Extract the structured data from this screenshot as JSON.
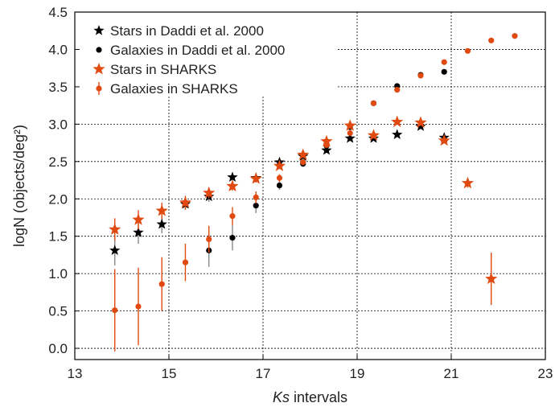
{
  "chart_data": {
    "type": "scatter",
    "title": "",
    "xlabel_italic": "Ks",
    "xlabel_rest": " intervals",
    "ylabel": "logN (objects/deg²)",
    "xlim": [
      13,
      23
    ],
    "ylim": [
      -0.15,
      4.5
    ],
    "xticks": [
      13,
      15,
      17,
      19,
      21,
      23
    ],
    "yticks": [
      0.0,
      0.5,
      1.0,
      1.5,
      2.0,
      2.5,
      3.0,
      3.5,
      4.0,
      4.5
    ],
    "grid": "dotted",
    "legend_position": "top-left",
    "colors": {
      "black": "#000000",
      "orange": "#e04a10",
      "errbar_gray": "#888888"
    },
    "series": [
      {
        "name": "Stars in Daddi et al. 2000",
        "marker": "star",
        "color": "#000000",
        "x": [
          13.85,
          14.35,
          14.85,
          15.35,
          15.85,
          16.35,
          16.85,
          17.35,
          17.85,
          18.35,
          18.85,
          19.35,
          19.85,
          20.35,
          20.85
        ],
        "y": [
          1.31,
          1.55,
          1.66,
          1.93,
          2.03,
          2.29,
          2.28,
          2.49,
          2.57,
          2.65,
          2.81,
          2.81,
          2.86,
          2.97,
          2.82
        ],
        "yerr": [
          0.2,
          0.15,
          0.12,
          0.08,
          0.07,
          0.05,
          0.06,
          0.04,
          0.03,
          0.02,
          0.02,
          0.02,
          0.02,
          0.02,
          0.03
        ]
      },
      {
        "name": "Galaxies in Daddi et al. 2000",
        "marker": "circle",
        "color": "#000000",
        "x": [
          15.85,
          16.35,
          16.85,
          17.35,
          17.85,
          18.35,
          18.85,
          19.35,
          19.85,
          20.35,
          20.85
        ],
        "y": [
          1.31,
          1.48,
          1.91,
          2.18,
          2.47,
          2.71,
          2.96,
          3.28,
          3.51,
          3.66,
          3.7
        ],
        "yerr": [
          0.22,
          0.17,
          0.1,
          0.06,
          0.04,
          0.03,
          0.02,
          0.02,
          0.01,
          0.01,
          0.01
        ]
      },
      {
        "name": "Stars in SHARKS",
        "marker": "star",
        "color": "#e04a10",
        "x": [
          13.85,
          14.35,
          14.85,
          15.35,
          15.85,
          16.35,
          16.85,
          17.35,
          17.85,
          18.35,
          18.85,
          19.35,
          19.85,
          20.35,
          20.85,
          21.35,
          21.85
        ],
        "y": [
          1.59,
          1.72,
          1.84,
          1.95,
          2.08,
          2.17,
          2.27,
          2.44,
          2.59,
          2.77,
          2.98,
          2.85,
          3.03,
          3.02,
          2.78,
          2.21,
          0.93
        ],
        "yerr": [
          0.15,
          0.13,
          0.11,
          0.09,
          0.07,
          0.06,
          0.05,
          0.04,
          0.03,
          0.02,
          0.02,
          0.02,
          0.02,
          0.02,
          0.03,
          0.06,
          0.35
        ]
      },
      {
        "name": "Galaxies in SHARKS",
        "marker": "circle",
        "color": "#e04a10",
        "x": [
          13.85,
          14.35,
          14.85,
          15.35,
          15.85,
          16.35,
          16.85,
          17.35,
          17.85,
          18.35,
          18.85,
          19.35,
          19.85,
          20.35,
          20.85,
          21.35,
          21.85,
          22.35
        ],
        "y": [
          0.51,
          0.56,
          0.86,
          1.15,
          1.46,
          1.77,
          2.02,
          2.28,
          2.49,
          2.72,
          2.88,
          3.28,
          3.46,
          3.65,
          3.83,
          3.98,
          4.12,
          4.18
        ],
        "yerr": [
          0.55,
          0.52,
          0.36,
          0.25,
          0.18,
          0.12,
          0.08,
          0.05,
          0.04,
          0.02,
          0.02,
          0.02,
          0.01,
          0.01,
          0.01,
          0.01,
          0.01,
          0.01
        ]
      }
    ]
  }
}
